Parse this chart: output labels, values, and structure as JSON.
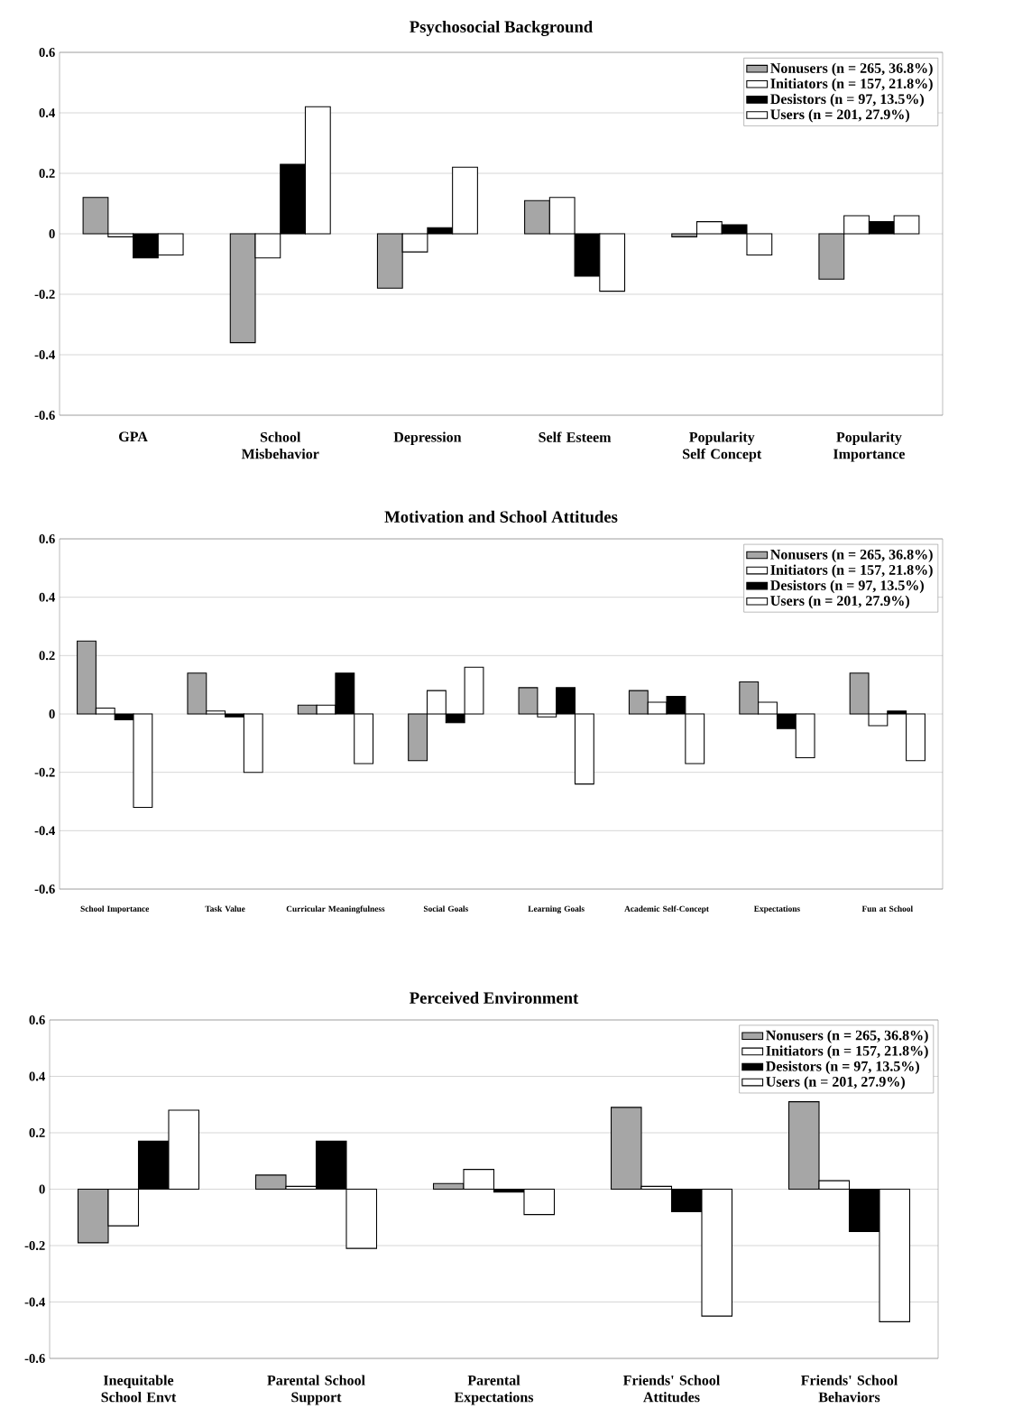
{
  "chart_data": [
    {
      "type": "bar",
      "title": "Psychosocial Background",
      "categories": [
        "GPA",
        "School Misbehavior",
        "Depression",
        "Self Esteem",
        "Popularity Self Concept",
        "Popularity Importance"
      ],
      "series": [
        {
          "name": "Nonusers (n = 265, 36.8%)",
          "color": "#a6a6a6",
          "values": [
            0.12,
            -0.36,
            -0.18,
            0.11,
            -0.01,
            -0.15
          ]
        },
        {
          "name": "Initiators (n = 157, 21.8%)",
          "color": "#ffffff",
          "values": [
            -0.01,
            -0.08,
            -0.06,
            0.12,
            0.04,
            0.06
          ]
        },
        {
          "name": "Desistors (n = 97, 13.5%)",
          "color": "#000000",
          "values": [
            -0.08,
            0.23,
            0.02,
            -0.14,
            0.03,
            0.04
          ]
        },
        {
          "name": "Users (n = 201, 27.9%)",
          "color": "#ffffff",
          "values": [
            -0.07,
            0.42,
            0.22,
            -0.19,
            -0.07,
            0.06
          ]
        }
      ],
      "ylim": [
        -0.6,
        0.6
      ],
      "yticks": [
        0.6,
        0.4,
        0.2,
        0,
        -0.2,
        -0.4,
        -0.6
      ],
      "grid": "y",
      "legend": "top right"
    },
    {
      "type": "bar",
      "title": "Motivation and School Attitudes",
      "categories": [
        "School Importance",
        "Task Value",
        "Curricular Meaningfulness",
        "Social Goals",
        "Learning Goals",
        "Academic Self-Concept",
        "Expectations",
        "Fun at School"
      ],
      "series": [
        {
          "name": "Nonusers (n = 265, 36.8%)",
          "color": "#a6a6a6",
          "values": [
            0.25,
            0.14,
            0.03,
            -0.16,
            0.09,
            0.08,
            0.11,
            0.14
          ]
        },
        {
          "name": "Initiators (n = 157, 21.8%)",
          "color": "#ffffff",
          "values": [
            0.02,
            0.01,
            0.03,
            0.08,
            -0.01,
            0.04,
            0.04,
            -0.04
          ]
        },
        {
          "name": "Desistors (n = 97, 13.5%)",
          "color": "#000000",
          "values": [
            -0.02,
            -0.01,
            0.14,
            -0.03,
            0.09,
            0.06,
            -0.05,
            0.01
          ]
        },
        {
          "name": "Users (n = 201, 27.9%)",
          "color": "#ffffff",
          "values": [
            -0.32,
            -0.2,
            -0.17,
            0.16,
            -0.24,
            -0.17,
            -0.15,
            -0.16
          ]
        }
      ],
      "ylim": [
        -0.6,
        0.6
      ],
      "yticks": [
        0.6,
        0.4,
        0.2,
        0,
        -0.2,
        -0.4,
        -0.6
      ],
      "grid": "y",
      "legend": "top right"
    },
    {
      "type": "bar",
      "title": "Perceived Environment",
      "categories": [
        "Inequitable School Envt",
        "Parental School Support",
        "Parental Expectations",
        "Friends' School Attitudes",
        "Friends' School Behaviors"
      ],
      "series": [
        {
          "name": "Nonusers (n = 265, 36.8%)",
          "color": "#a6a6a6",
          "values": [
            -0.19,
            0.05,
            0.02,
            0.29,
            0.31
          ]
        },
        {
          "name": "Initiators (n = 157, 21.8%)",
          "color": "#ffffff",
          "values": [
            -0.13,
            0.01,
            0.07,
            0.01,
            0.03
          ]
        },
        {
          "name": "Desistors (n = 97, 13.5%)",
          "color": "#000000",
          "values": [
            0.17,
            0.17,
            -0.01,
            -0.08,
            -0.15
          ]
        },
        {
          "name": "Users (n = 201, 27.9%)",
          "color": "#ffffff",
          "values": [
            0.28,
            -0.21,
            -0.09,
            -0.45,
            -0.47
          ]
        }
      ],
      "ylim": [
        -0.6,
        0.6
      ],
      "yticks": [
        0.6,
        0.4,
        0.2,
        0,
        -0.2,
        -0.4,
        -0.6
      ],
      "grid": "y",
      "legend": "top right"
    }
  ]
}
